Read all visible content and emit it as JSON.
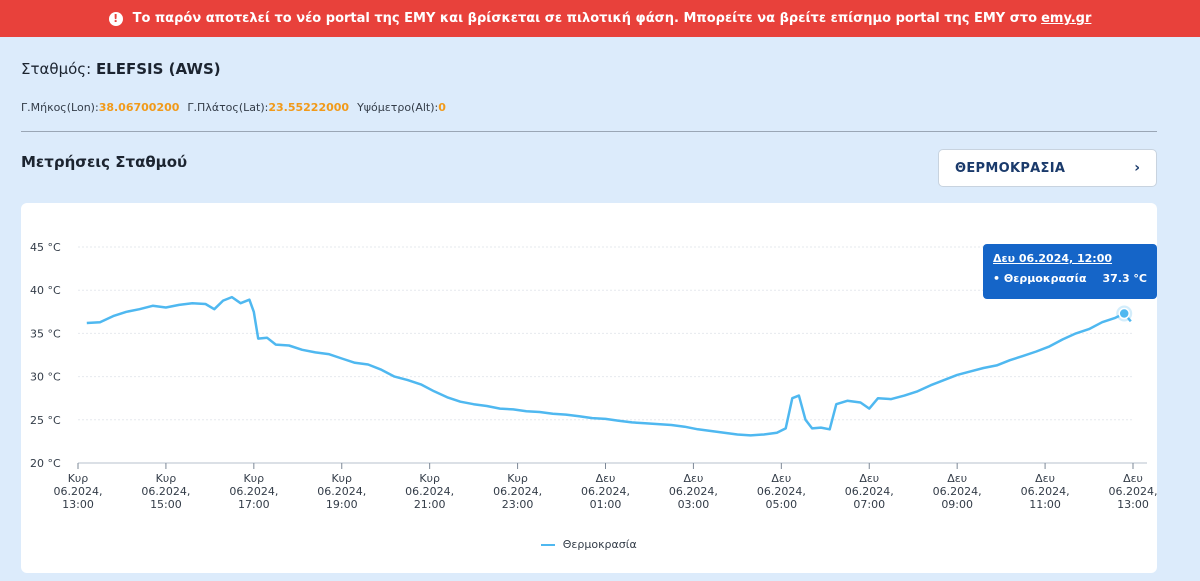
{
  "banner": {
    "text": "Το παρόν αποτελεί το νέο portal της ΕΜΥ και βρίσκεται σε πιλοτική φάση. Μπορείτε να βρείτε επίσημο portal της ΕΜΥ στο",
    "link_text": "emy.gr",
    "icon": "exclamation-icon"
  },
  "station": {
    "prefix": "Σταθμός:",
    "name": "ELEFSIS (AWS)",
    "lon_label": "Γ.Μήκος(Lon):",
    "lon_value": "38.06700200",
    "lat_label": "Γ.Πλάτος(Lat):",
    "lat_value": "23.55222000",
    "alt_label": "Υψόμετρο(Alt):",
    "alt_value": "0"
  },
  "section": {
    "title": "Μετρήσεις Σταθμού",
    "parameter": "ΘΕΡΜΟΚΡΑΣΙΑ"
  },
  "tooltip": {
    "date": "Δευ 06.2024, 12:00",
    "series_label": "• Θερμοκρασία",
    "value": "37.3 °C"
  },
  "chart_data": {
    "type": "line",
    "series_name": "Θερμοκρασία",
    "y_unit": "°C",
    "ylim": [
      20,
      45
    ],
    "y_ticks": [
      "45 °C",
      "40 °C",
      "35 °C",
      "30 °C",
      "25 °C",
      "20 °C"
    ],
    "y_tick_values": [
      45,
      40,
      35,
      30,
      25,
      20
    ],
    "x_ticks": [
      [
        "Κυρ",
        "06.2024,",
        "13:00"
      ],
      [
        "Κυρ",
        "06.2024,",
        "15:00"
      ],
      [
        "Κυρ",
        "06.2024,",
        "17:00"
      ],
      [
        "Κυρ",
        "06.2024,",
        "19:00"
      ],
      [
        "Κυρ",
        "06.2024,",
        "21:00"
      ],
      [
        "Κυρ",
        "06.2024,",
        "23:00"
      ],
      [
        "Δευ",
        "06.2024,",
        "01:00"
      ],
      [
        "Δευ",
        "06.2024,",
        "03:00"
      ],
      [
        "Δευ",
        "06.2024,",
        "05:00"
      ],
      [
        "Δευ",
        "06.2024,",
        "07:00"
      ],
      [
        "Δευ",
        "06.2024,",
        "09:00"
      ],
      [
        "Δευ",
        "06.2024,",
        "11:00"
      ],
      [
        "Δευ",
        "06.2024,",
        "13:00"
      ]
    ],
    "x_start_hour": 13,
    "x_end_hour": 37,
    "points": [
      [
        13.2,
        36.2
      ],
      [
        13.5,
        36.3
      ],
      [
        13.8,
        37.0
      ],
      [
        14.1,
        37.5
      ],
      [
        14.4,
        37.8
      ],
      [
        14.7,
        38.2
      ],
      [
        15.0,
        38.0
      ],
      [
        15.3,
        38.3
      ],
      [
        15.6,
        38.5
      ],
      [
        15.9,
        38.4
      ],
      [
        16.1,
        37.8
      ],
      [
        16.3,
        38.8
      ],
      [
        16.5,
        39.2
      ],
      [
        16.7,
        38.5
      ],
      [
        16.9,
        38.9
      ],
      [
        17.0,
        37.5
      ],
      [
        17.1,
        34.4
      ],
      [
        17.3,
        34.5
      ],
      [
        17.5,
        33.7
      ],
      [
        17.8,
        33.6
      ],
      [
        18.1,
        33.1
      ],
      [
        18.4,
        32.8
      ],
      [
        18.7,
        32.6
      ],
      [
        19.0,
        32.1
      ],
      [
        19.3,
        31.6
      ],
      [
        19.6,
        31.4
      ],
      [
        19.9,
        30.8
      ],
      [
        20.2,
        30.0
      ],
      [
        20.5,
        29.6
      ],
      [
        20.8,
        29.1
      ],
      [
        21.1,
        28.3
      ],
      [
        21.4,
        27.6
      ],
      [
        21.7,
        27.1
      ],
      [
        22.0,
        26.8
      ],
      [
        22.3,
        26.6
      ],
      [
        22.6,
        26.3
      ],
      [
        22.9,
        26.2
      ],
      [
        23.2,
        26.0
      ],
      [
        23.5,
        25.9
      ],
      [
        23.8,
        25.7
      ],
      [
        24.1,
        25.6
      ],
      [
        24.4,
        25.4
      ],
      [
        24.7,
        25.2
      ],
      [
        25.0,
        25.1
      ],
      [
        25.3,
        24.9
      ],
      [
        25.6,
        24.7
      ],
      [
        25.9,
        24.6
      ],
      [
        26.2,
        24.5
      ],
      [
        26.5,
        24.4
      ],
      [
        26.8,
        24.2
      ],
      [
        27.1,
        23.9
      ],
      [
        27.4,
        23.7
      ],
      [
        27.7,
        23.5
      ],
      [
        28.0,
        23.3
      ],
      [
        28.3,
        23.2
      ],
      [
        28.6,
        23.3
      ],
      [
        28.9,
        23.5
      ],
      [
        29.1,
        24.0
      ],
      [
        29.25,
        27.5
      ],
      [
        29.4,
        27.8
      ],
      [
        29.55,
        25.0
      ],
      [
        29.7,
        24.0
      ],
      [
        29.9,
        24.1
      ],
      [
        30.1,
        23.9
      ],
      [
        30.25,
        26.8
      ],
      [
        30.5,
        27.2
      ],
      [
        30.8,
        27.0
      ],
      [
        31.0,
        26.3
      ],
      [
        31.2,
        27.5
      ],
      [
        31.5,
        27.4
      ],
      [
        31.8,
        27.8
      ],
      [
        32.1,
        28.3
      ],
      [
        32.4,
        29.0
      ],
      [
        32.7,
        29.6
      ],
      [
        33.0,
        30.2
      ],
      [
        33.3,
        30.6
      ],
      [
        33.6,
        31.0
      ],
      [
        33.9,
        31.3
      ],
      [
        34.2,
        31.9
      ],
      [
        34.5,
        32.4
      ],
      [
        34.8,
        32.9
      ],
      [
        35.1,
        33.5
      ],
      [
        35.4,
        34.3
      ],
      [
        35.7,
        35.0
      ],
      [
        36.0,
        35.5
      ],
      [
        36.3,
        36.3
      ],
      [
        36.6,
        36.8
      ],
      [
        36.8,
        37.3
      ],
      [
        36.95,
        36.4
      ]
    ],
    "highlight": [
      36.8,
      37.3
    ],
    "grid": true,
    "legend": "bottom-center",
    "color": "#4fb8f0"
  }
}
